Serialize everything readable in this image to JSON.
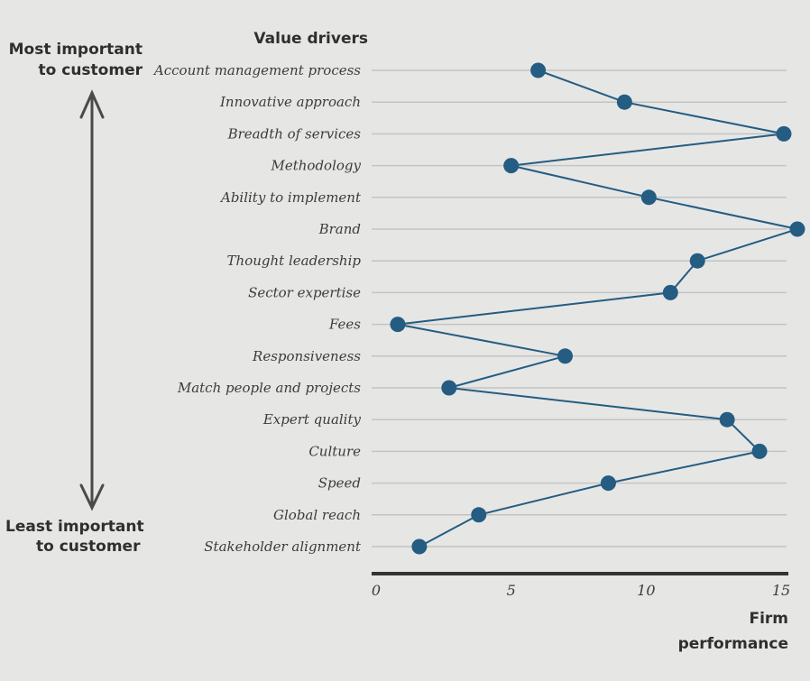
{
  "chart_data": {
    "type": "line",
    "orientation": "horizontal",
    "title": "Value drivers",
    "xlabel": "Firm performance",
    "xlabel_lines": [
      "Firm",
      "performance"
    ],
    "xlim": [
      0,
      15
    ],
    "xticks": [
      "0",
      "5",
      "10",
      "15"
    ],
    "categories": [
      "Account management process",
      "Innovative approach",
      "Breadth of services",
      "Methodology",
      "Ability to implement",
      "Brand",
      "Thought leadership",
      "Sector expertise",
      "Fees",
      "Responsiveness",
      "Match people and projects",
      "Expert quality",
      "Culture",
      "Speed",
      "Global reach",
      "Stakeholder alignment"
    ],
    "values": [
      6.0,
      9.2,
      15.1,
      5.0,
      10.1,
      15.6,
      11.9,
      10.9,
      0.8,
      7.0,
      2.7,
      13.0,
      14.2,
      8.6,
      3.8,
      1.6
    ],
    "grid": true,
    "color": "#245c82",
    "axis_note": {
      "top_lines": [
        "Most important",
        "to customer"
      ],
      "bottom_lines": [
        "Least important",
        "to customer"
      ]
    }
  }
}
